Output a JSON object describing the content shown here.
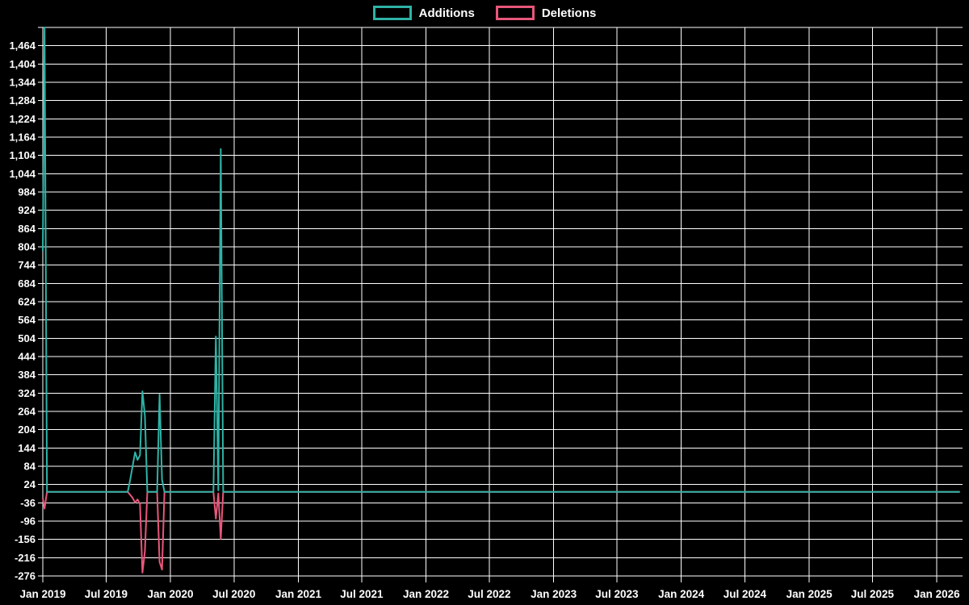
{
  "chart_data": {
    "type": "line",
    "title": "",
    "legend": [
      "Additions",
      "Deletions"
    ],
    "legend_position": "top",
    "background_color": "#000000",
    "grid": {
      "show": true,
      "color": "#ffffff"
    },
    "x_axis": {
      "ticks": [
        {
          "label": "Jan 2019",
          "date": "2019-01-01"
        },
        {
          "label": "Jul 2019",
          "date": "2019-07-01"
        },
        {
          "label": "Jan 2020",
          "date": "2020-01-01"
        },
        {
          "label": "Jul 2020",
          "date": "2020-07-01"
        },
        {
          "label": "Jan 2021",
          "date": "2021-01-01"
        },
        {
          "label": "Jul 2021",
          "date": "2021-07-01"
        },
        {
          "label": "Jan 2022",
          "date": "2022-01-01"
        },
        {
          "label": "Jul 2022",
          "date": "2022-07-01"
        },
        {
          "label": "Jan 2023",
          "date": "2023-01-01"
        },
        {
          "label": "Jul 2023",
          "date": "2023-07-01"
        },
        {
          "label": "Jan 2024",
          "date": "2024-01-01"
        },
        {
          "label": "Jul 2024",
          "date": "2024-07-01"
        },
        {
          "label": "Jan 2025",
          "date": "2025-01-01"
        },
        {
          "label": "Jul 2025",
          "date": "2025-07-01"
        },
        {
          "label": "Jan 2026",
          "date": "2026-01-01"
        }
      ]
    },
    "y_axis": {
      "min": -276,
      "max": 1524,
      "step": 60,
      "top_gridline_value": 1524,
      "ticks": [
        {
          "value": 1464,
          "label": "1,464"
        },
        {
          "value": 1404,
          "label": "1,404"
        },
        {
          "value": 1344,
          "label": "1,344"
        },
        {
          "value": 1284,
          "label": "1,284"
        },
        {
          "value": 1224,
          "label": "1,224"
        },
        {
          "value": 1164,
          "label": "1,164"
        },
        {
          "value": 1104,
          "label": "1,104"
        },
        {
          "value": 1044,
          "label": "1,044"
        },
        {
          "value": 984,
          "label": "984"
        },
        {
          "value": 924,
          "label": "924"
        },
        {
          "value": 864,
          "label": "864"
        },
        {
          "value": 804,
          "label": "804"
        },
        {
          "value": 744,
          "label": "744"
        },
        {
          "value": 684,
          "label": "684"
        },
        {
          "value": 624,
          "label": "624"
        },
        {
          "value": 564,
          "label": "564"
        },
        {
          "value": 504,
          "label": "504"
        },
        {
          "value": 444,
          "label": "444"
        },
        {
          "value": 384,
          "label": "384"
        },
        {
          "value": 324,
          "label": "324"
        },
        {
          "value": 264,
          "label": "264"
        },
        {
          "value": 204,
          "label": "204"
        },
        {
          "value": 144,
          "label": "144"
        },
        {
          "value": 84,
          "label": "84"
        },
        {
          "value": 24,
          "label": "24"
        },
        {
          "value": -36,
          "label": "-36"
        },
        {
          "value": -96,
          "label": "-96"
        },
        {
          "value": -156,
          "label": "-156"
        },
        {
          "value": -216,
          "label": "-216"
        },
        {
          "value": -276,
          "label": "-276"
        }
      ]
    },
    "series": [
      {
        "name": "Additions",
        "color": "#2eb3a6",
        "points": [
          [
            "2019-01-01",
            790
          ],
          [
            "2019-01-06",
            1524
          ],
          [
            "2019-01-13",
            0
          ],
          [
            "2019-09-01",
            0
          ],
          [
            "2019-09-08",
            40
          ],
          [
            "2019-09-15",
            85
          ],
          [
            "2019-09-22",
            130
          ],
          [
            "2019-09-29",
            105
          ],
          [
            "2019-10-06",
            120
          ],
          [
            "2019-10-13",
            330
          ],
          [
            "2019-10-20",
            250
          ],
          [
            "2019-10-27",
            0
          ],
          [
            "2019-11-24",
            0
          ],
          [
            "2019-12-01",
            320
          ],
          [
            "2019-12-08",
            40
          ],
          [
            "2019-12-15",
            0
          ],
          [
            "2020-05-03",
            0
          ],
          [
            "2020-05-10",
            510
          ],
          [
            "2020-05-17",
            5
          ],
          [
            "2020-05-24",
            1125
          ],
          [
            "2020-05-31",
            0
          ],
          [
            "2026-03-08",
            0
          ]
        ]
      },
      {
        "name": "Deletions",
        "color": "#e8577b",
        "points": [
          [
            "2019-01-01",
            -20
          ],
          [
            "2019-01-06",
            -55
          ],
          [
            "2019-01-13",
            0
          ],
          [
            "2019-09-01",
            0
          ],
          [
            "2019-09-08",
            -10
          ],
          [
            "2019-09-15",
            -20
          ],
          [
            "2019-09-22",
            -35
          ],
          [
            "2019-09-29",
            -25
          ],
          [
            "2019-10-06",
            -40
          ],
          [
            "2019-10-13",
            -265
          ],
          [
            "2019-10-20",
            -195
          ],
          [
            "2019-10-27",
            0
          ],
          [
            "2019-11-24",
            0
          ],
          [
            "2019-12-01",
            -230
          ],
          [
            "2019-12-08",
            -255
          ],
          [
            "2019-12-15",
            0
          ],
          [
            "2020-05-03",
            0
          ],
          [
            "2020-05-10",
            -88
          ],
          [
            "2020-05-17",
            -5
          ],
          [
            "2020-05-24",
            -154
          ],
          [
            "2020-05-31",
            0
          ],
          [
            "2026-03-08",
            0
          ]
        ]
      }
    ]
  }
}
